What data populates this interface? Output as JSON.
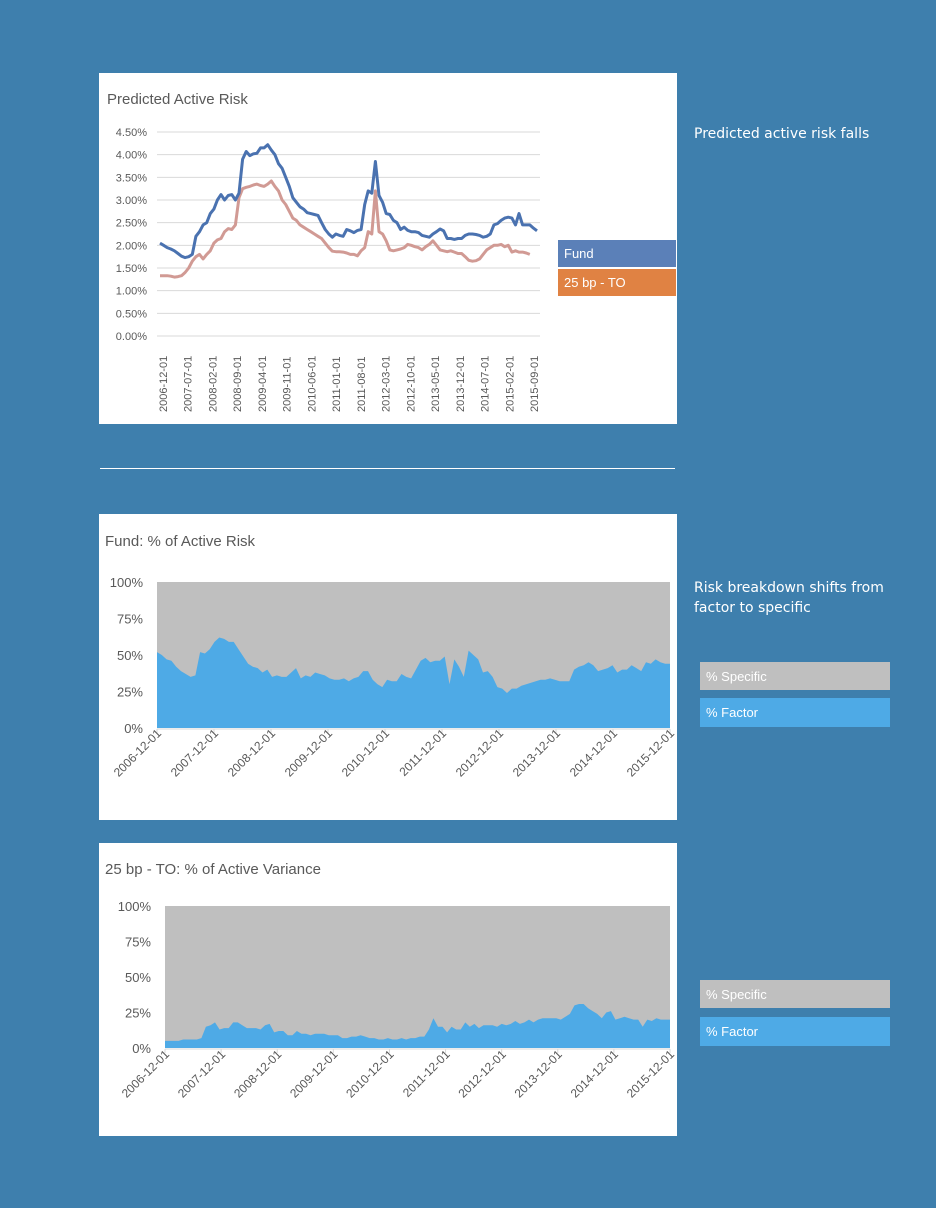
{
  "colors": {
    "background": "#3e7fad",
    "fund": "#5b80b8",
    "fund_line": "#4a72b0",
    "to": "#e08243",
    "to_line": "#d19a94",
    "specific": "#bfbfbf",
    "factor": "#4eaae6"
  },
  "sidebar": {
    "note1": "Predicted active risk falls",
    "note2": "Risk breakdown shifts from factor to specific"
  },
  "legend1": {
    "fund": "Fund",
    "to": "25 bp - TO"
  },
  "legend2": {
    "specific": "% Specific",
    "factor": "% Factor"
  },
  "legend3": {
    "specific": "% Specific",
    "factor": "% Factor"
  },
  "chart_data": [
    {
      "type": "line",
      "title": "Predicted Active Risk",
      "xlabel": "",
      "ylabel": "",
      "ylim": [
        0,
        4.5
      ],
      "yticks": [
        "0.00%",
        "0.50%",
        "1.00%",
        "1.50%",
        "2.00%",
        "2.50%",
        "3.00%",
        "3.50%",
        "4.00%",
        "4.50%"
      ],
      "xticks": [
        "2006-12-01",
        "2007-07-01",
        "2008-02-01",
        "2008-09-01",
        "2009-04-01",
        "2009-11-01",
        "2010-06-01",
        "2011-01-01",
        "2011-08-01",
        "2012-03-01",
        "2012-10-01",
        "2013-05-01",
        "2013-12-01",
        "2014-07-01",
        "2015-02-01",
        "2015-09-01"
      ],
      "grid": true,
      "legend": "right",
      "series": [
        {
          "name": "Fund",
          "values": [
            2.05,
            2.0,
            1.95,
            1.92,
            1.88,
            1.82,
            1.76,
            1.73,
            1.75,
            1.8,
            2.2,
            2.3,
            2.45,
            2.5,
            2.7,
            2.8,
            3.0,
            3.12,
            3.0,
            3.1,
            3.12,
            3.0,
            3.15,
            3.9,
            4.07,
            3.98,
            4.02,
            4.03,
            4.15,
            4.15,
            4.22,
            4.1,
            4.0,
            3.8,
            3.7,
            3.5,
            3.3,
            3.05,
            2.95,
            2.85,
            2.8,
            2.72,
            2.7,
            2.68,
            2.66,
            2.5,
            2.35,
            2.25,
            2.18,
            2.25,
            2.22,
            2.2,
            2.35,
            2.32,
            2.28,
            2.33,
            2.35,
            2.9,
            3.2,
            3.15,
            3.85,
            3.1,
            2.95,
            2.7,
            2.68,
            2.55,
            2.5,
            2.35,
            2.4,
            2.33,
            2.3,
            2.3,
            2.28,
            2.22,
            2.2,
            2.18,
            2.25,
            2.3,
            2.36,
            2.32,
            2.15,
            2.15,
            2.13,
            2.15,
            2.15,
            2.22,
            2.25,
            2.25,
            2.24,
            2.22,
            2.18,
            2.2,
            2.25,
            2.45,
            2.48,
            2.55,
            2.6,
            2.62,
            2.6,
            2.45,
            2.7,
            2.45,
            2.45,
            2.45,
            2.38,
            2.32
          ]
        },
        {
          "name": "25 bp - TO",
          "values": [
            1.33,
            1.33,
            1.33,
            1.32,
            1.3,
            1.31,
            1.33,
            1.4,
            1.5,
            1.65,
            1.75,
            1.8,
            1.7,
            1.8,
            1.88,
            2.05,
            2.12,
            2.15,
            2.3,
            2.37,
            2.35,
            2.45,
            3.05,
            3.25,
            3.28,
            3.3,
            3.33,
            3.35,
            3.32,
            3.3,
            3.35,
            3.42,
            3.3,
            3.2,
            3.0,
            2.9,
            2.75,
            2.6,
            2.55,
            2.45,
            2.4,
            2.35,
            2.3,
            2.25,
            2.2,
            2.15,
            2.05,
            1.95,
            1.87,
            1.86,
            1.86,
            1.85,
            1.83,
            1.8,
            1.8,
            1.77,
            1.88,
            1.95,
            2.3,
            2.25,
            3.2,
            2.3,
            2.25,
            2.1,
            1.9,
            1.88,
            1.9,
            1.92,
            1.95,
            2.02,
            2.0,
            1.97,
            1.95,
            1.9,
            1.97,
            2.02,
            2.1,
            2.0,
            1.9,
            1.88,
            1.86,
            1.88,
            1.85,
            1.82,
            1.82,
            1.75,
            1.67,
            1.65,
            1.66,
            1.7,
            1.8,
            1.9,
            1.95,
            2.0,
            2.0,
            2.02,
            1.97,
            2.0,
            1.85,
            1.88,
            1.85,
            1.85,
            1.83,
            1.8
          ]
        }
      ]
    },
    {
      "type": "area",
      "stacked": "percent",
      "title": "Fund: % of Active Risk",
      "xlabel": "",
      "ylabel": "",
      "ylim": [
        0,
        100
      ],
      "yticks": [
        "0%",
        "25%",
        "50%",
        "75%",
        "100%"
      ],
      "xticks": [
        "2006-12-01",
        "2007-12-01",
        "2008-12-01",
        "2009-12-01",
        "2010-12-01",
        "2011-12-01",
        "2012-12-01",
        "2013-12-01",
        "2014-12-01",
        "2015-12-01"
      ],
      "legend": "right",
      "series": [
        {
          "name": "% Factor",
          "values": [
            52,
            50,
            47,
            46,
            42,
            39,
            37,
            35,
            36,
            52,
            51,
            54,
            59,
            62,
            61,
            59,
            59,
            54,
            49,
            44,
            42,
            41,
            38,
            40,
            35,
            36,
            35,
            35,
            38,
            41,
            34,
            36,
            35,
            38,
            37,
            36,
            34,
            33,
            33,
            34,
            32,
            34,
            35,
            39,
            39,
            33,
            30,
            28,
            33,
            32,
            32,
            37,
            35,
            34,
            40,
            46,
            48,
            45,
            46,
            46,
            49,
            30,
            47,
            42,
            35,
            53,
            50,
            47,
            38,
            39,
            35,
            28,
            27,
            24,
            27,
            27,
            29,
            30,
            31,
            32,
            33,
            33,
            34,
            33,
            32,
            32,
            32,
            40,
            42,
            43,
            45,
            43,
            39,
            40,
            41,
            43,
            38,
            40,
            40,
            43,
            41,
            39,
            45,
            44,
            47,
            45,
            44,
            44
          ]
        },
        {
          "name": "% Specific",
          "values_note": "complement of % Factor (sums to 100%)"
        }
      ]
    },
    {
      "type": "area",
      "stacked": "percent",
      "title": "25 bp - TO: % of Active Variance",
      "xlabel": "",
      "ylabel": "",
      "ylim": [
        0,
        100
      ],
      "yticks": [
        "0%",
        "25%",
        "50%",
        "75%",
        "100%"
      ],
      "xticks": [
        "2006-12-01",
        "2007-12-01",
        "2008-12-01",
        "2009-12-01",
        "2010-12-01",
        "2011-12-01",
        "2012-12-01",
        "2013-12-01",
        "2014-12-01",
        "2015-12-01"
      ],
      "legend": "right",
      "series": [
        {
          "name": "% Factor",
          "values": [
            5,
            5,
            5,
            5,
            6,
            6,
            6,
            6,
            7,
            15,
            16,
            18,
            13,
            14,
            14,
            18,
            18,
            16,
            14,
            14,
            14,
            13,
            16,
            17,
            11,
            12,
            12,
            9,
            9,
            12,
            10,
            10,
            9,
            10,
            10,
            10,
            9,
            9,
            9,
            7,
            7,
            8,
            8,
            9,
            8,
            7,
            7,
            6,
            6,
            7,
            6,
            6,
            7,
            6,
            7,
            7,
            8,
            8,
            13,
            21,
            15,
            15,
            11,
            15,
            13,
            13,
            18,
            15,
            17,
            14,
            16,
            16,
            16,
            15,
            17,
            16,
            17,
            19,
            17,
            18,
            20,
            18,
            20,
            21,
            21,
            21,
            21,
            20,
            22,
            24,
            30,
            31,
            31,
            28,
            26,
            24,
            21,
            25,
            26,
            20,
            21,
            22,
            21,
            20,
            20,
            15,
            20,
            19,
            21,
            20,
            20,
            20
          ]
        },
        {
          "name": "% Specific",
          "values_note": "complement of % Factor (sums to 100%)"
        }
      ]
    }
  ]
}
